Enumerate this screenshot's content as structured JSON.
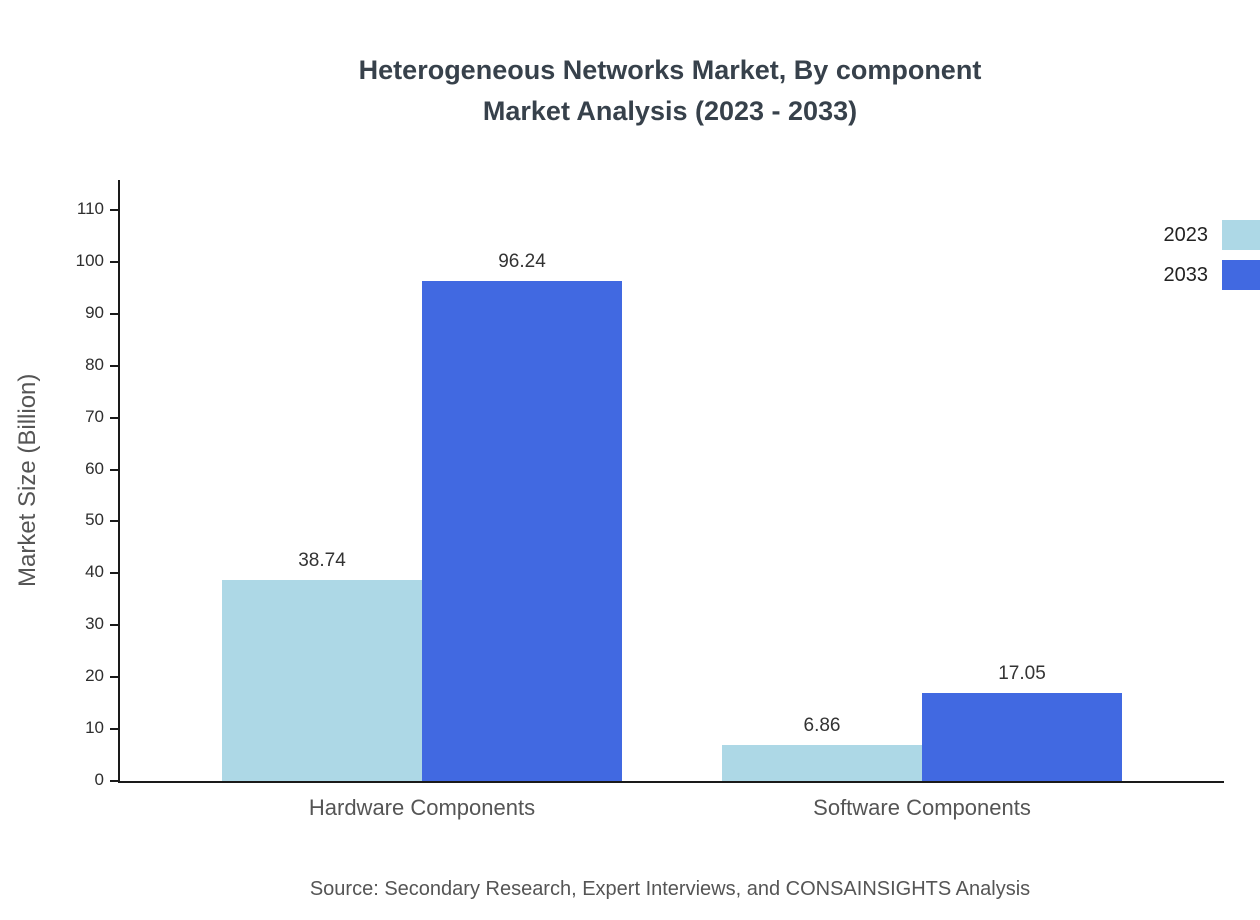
{
  "title": {
    "line1": "Heterogeneous Networks Market, By component",
    "line2": "Market Analysis (2023 - 2033)"
  },
  "chart_data": {
    "type": "bar",
    "categories": [
      "Hardware Components",
      "Software Components"
    ],
    "series": [
      {
        "name": "2023",
        "color": "#ADD8E6",
        "values": [
          38.74,
          6.86
        ]
      },
      {
        "name": "2033",
        "color": "#4169E1",
        "values": [
          96.24,
          17.05
        ]
      }
    ],
    "title": "Heterogeneous Networks Market, By component Market Analysis (2023 - 2033)",
    "xlabel": "",
    "ylabel": "Market Size (Billion)",
    "ylim": [
      0,
      110
    ],
    "yticks": [
      0,
      10,
      20,
      30,
      40,
      50,
      60,
      70,
      80,
      90,
      100,
      110
    ],
    "grid": false,
    "legend_position": "right"
  },
  "source": "Source: Secondary Research, Expert Interviews, and CONSAINSIGHTS Analysis"
}
